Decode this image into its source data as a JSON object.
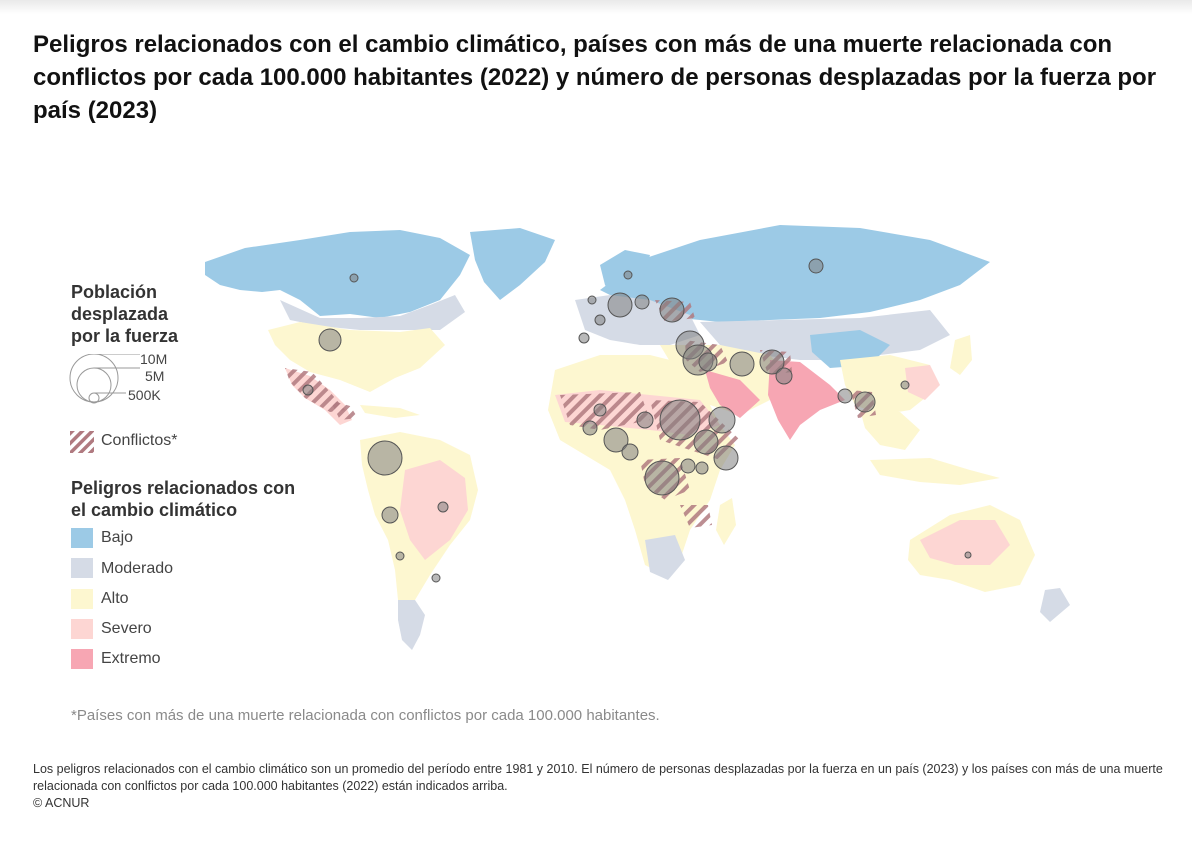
{
  "title": "Peligros relacionados con el cambio climático, países con más de una muerte relacionada con conflictos por cada 100.000 habitantes (2022) y número de personas desplazadas por la fuerza por país (2023)",
  "legend": {
    "size_heading": "Población desplazada por la fuerza",
    "size_labels": [
      "10M",
      "5M",
      "500K"
    ],
    "conflict_label": "Conflictos*",
    "hazard_heading": "Peligros relacionados con el cambio climático",
    "hazard_levels": [
      {
        "label": "Bajo",
        "color": "#9ccae6"
      },
      {
        "label": "Moderado",
        "color": "#d5dbe6"
      },
      {
        "label": "Alto",
        "color": "#fdf7d0"
      },
      {
        "label": "Severo",
        "color": "#fdd6d3"
      },
      {
        "label": "Extremo",
        "color": "#f7a6b3"
      }
    ]
  },
  "colors": {
    "conflict_stripe": "#b07a80",
    "bubble_fill": "#808080",
    "land_outline": "#ffffff"
  },
  "footnote": "*Países con más de una muerte relacionada con conflictos por cada 100.000 habitantes.",
  "caption_line1": "Los peligros relacionados con el cambio climático son un promedio del período entre 1981 y 2010. El número de personas desplazadas por la fuerza en un país (2023) y los países con más de una muerte relacionada con conlfictos por cada 100.000 habitantes (2022) están indicados arriba.",
  "caption_line2": "© ACNUR"
}
